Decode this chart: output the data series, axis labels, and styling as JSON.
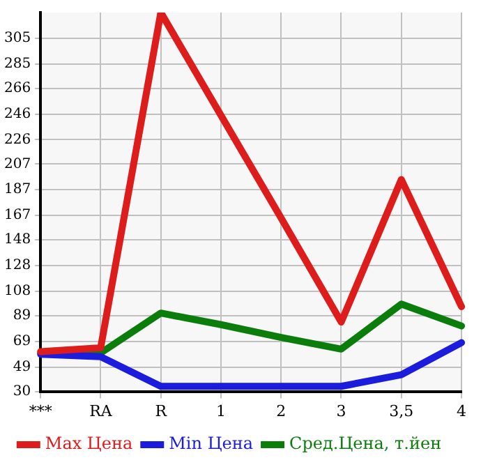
{
  "chart_data": {
    "type": "line",
    "categories": [
      "***",
      "RA",
      "R",
      "1",
      "2",
      "3",
      "3,5",
      "4"
    ],
    "series": [
      {
        "name": "Max Цена",
        "color": "#dd1c1c",
        "values": [
          61,
          64,
          325,
          245,
          165,
          84,
          195,
          96
        ]
      },
      {
        "name": "Min Цена",
        "color": "#1c1cdd",
        "values": [
          59,
          57,
          34,
          34,
          34,
          34,
          43,
          68
        ]
      },
      {
        "name": "Сред.Цена, т.йен",
        "color": "#0b7d0b",
        "values": [
          60,
          60,
          91,
          82,
          72,
          63,
          98,
          81
        ]
      }
    ],
    "ylim": [
      30,
      325
    ],
    "yticks": [
      30,
      49,
      69,
      89,
      108,
      128,
      148,
      167,
      187,
      207,
      226,
      246,
      266,
      285,
      305
    ],
    "grid": true,
    "legend": "bottom",
    "marker": "none",
    "line_style": "solid"
  }
}
